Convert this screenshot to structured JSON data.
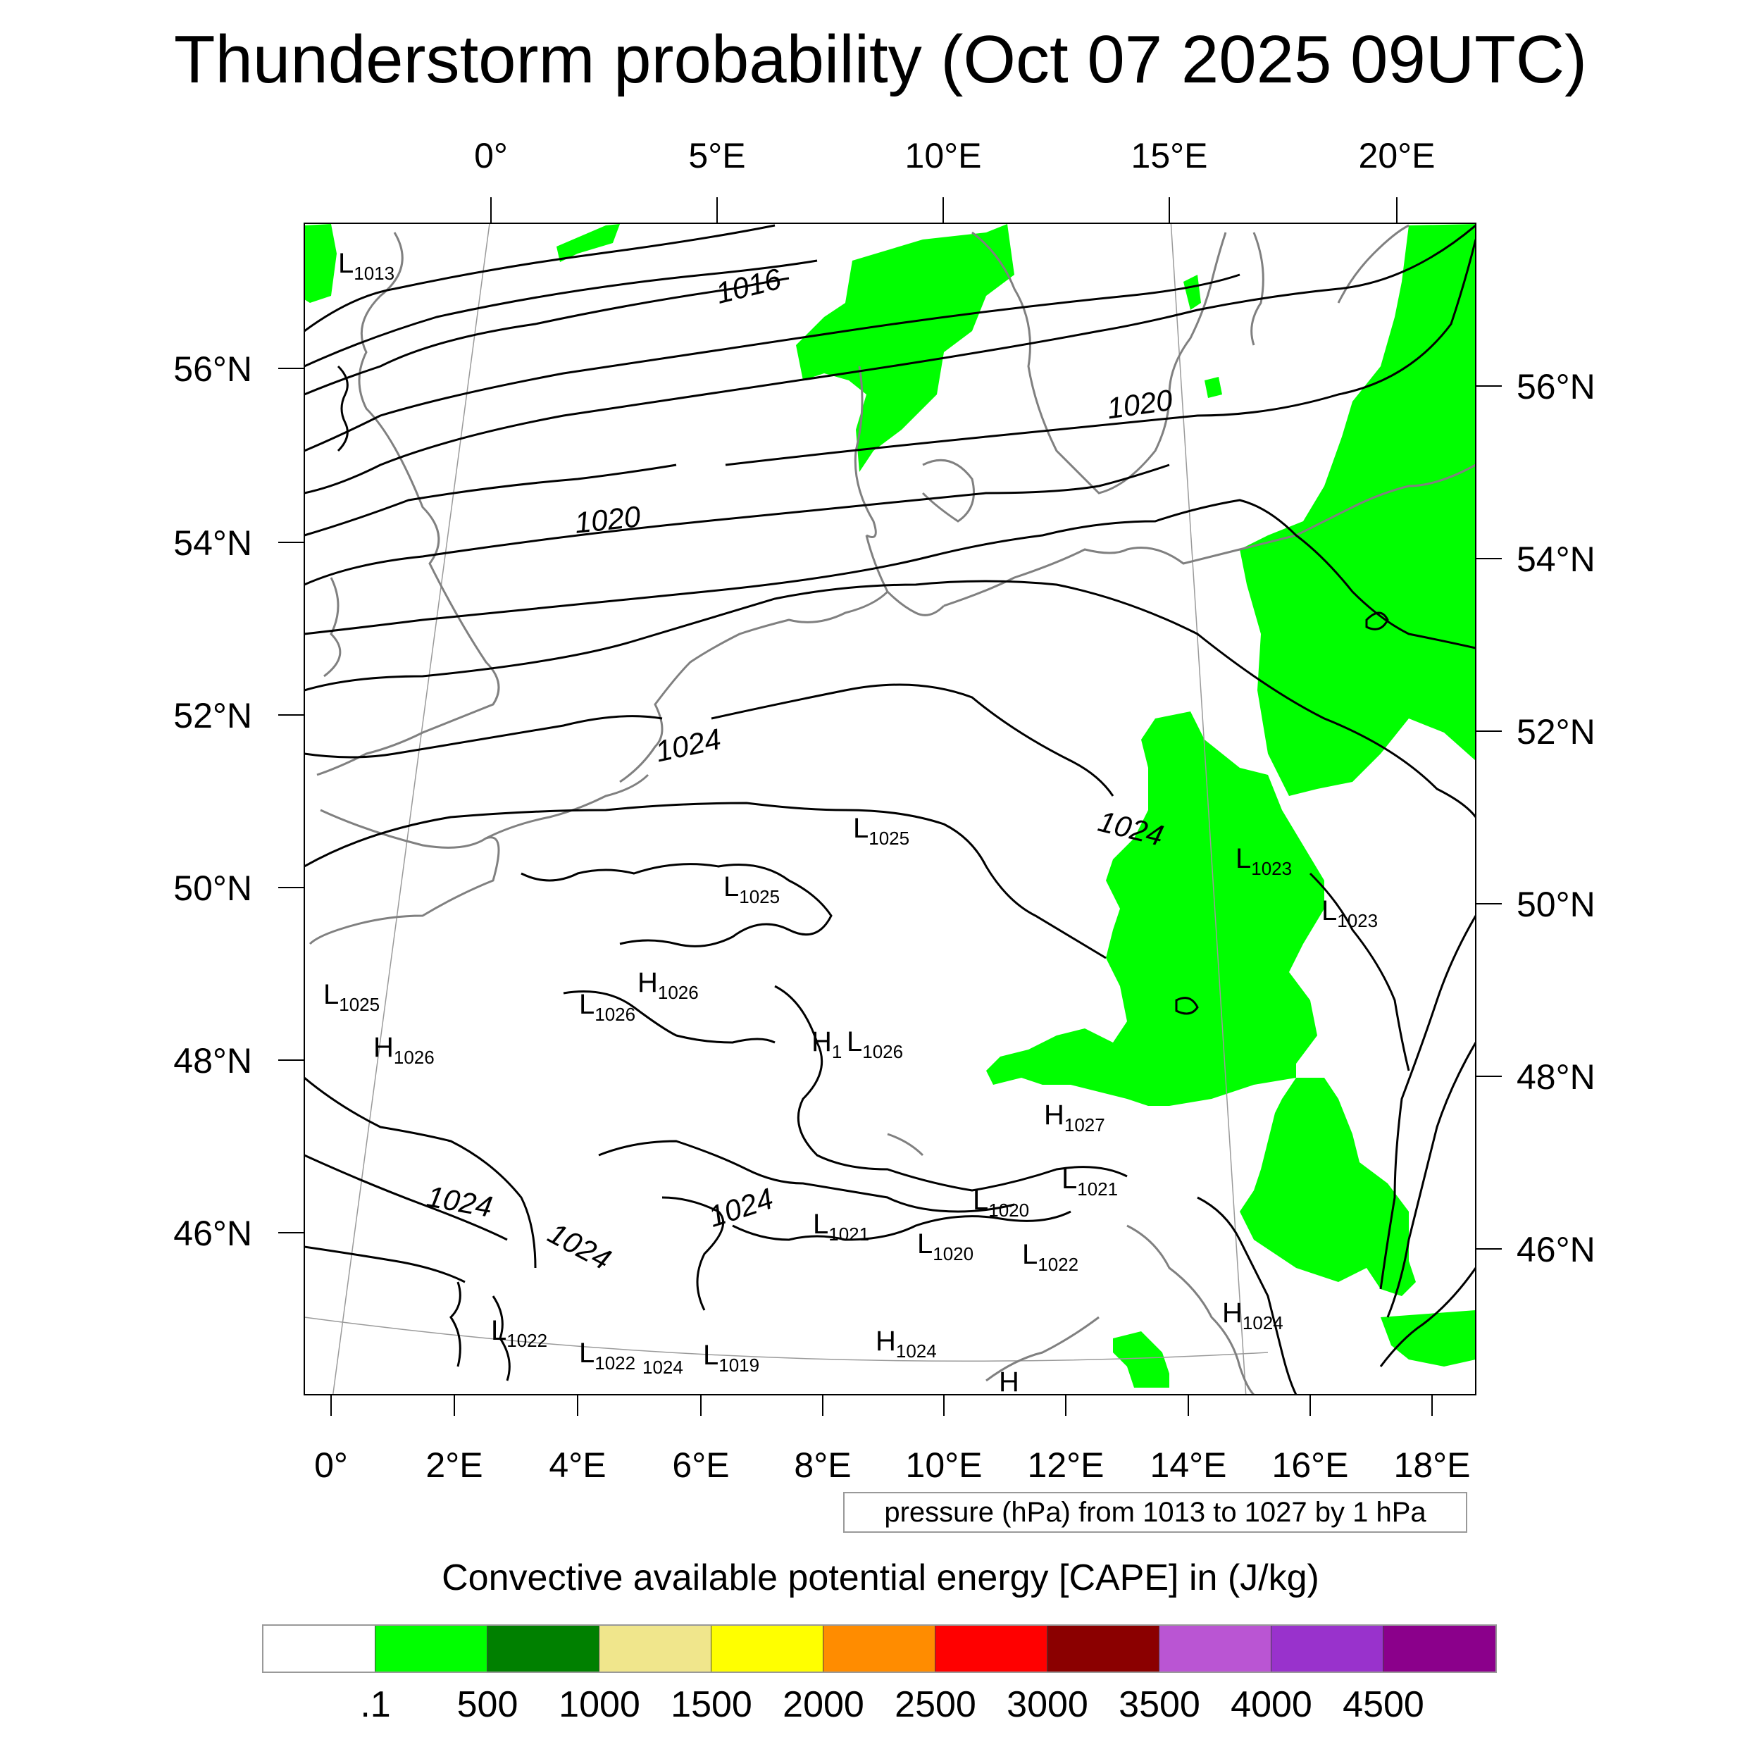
{
  "title": "Thunderstorm probability (Oct 07 2025 09UTC)",
  "axes": {
    "top_lon_labels": [
      "0°",
      "5°E",
      "10°E",
      "15°E",
      "20°E"
    ],
    "bottom_lon_labels": [
      "0°",
      "2°E",
      "4°E",
      "6°E",
      "8°E",
      "10°E",
      "12°E",
      "14°E",
      "16°E",
      "18°E"
    ],
    "left_lat_labels": [
      "56°N",
      "54°N",
      "52°N",
      "50°N",
      "48°N",
      "46°N"
    ],
    "right_lat_labels": [
      "56°N",
      "54°N",
      "52°N",
      "50°N",
      "48°N",
      "46°N"
    ]
  },
  "isobar_labels": [
    "1016",
    "1020",
    "1020",
    "1024",
    "1024",
    "1024",
    "1024",
    "1024"
  ],
  "pressure_centers": [
    {
      "type": "L",
      "value": "1013"
    },
    {
      "type": "L",
      "value": "1025"
    },
    {
      "type": "L",
      "value": "1025"
    },
    {
      "type": "L",
      "value": "1023"
    },
    {
      "type": "L",
      "value": "1023"
    },
    {
      "type": "L",
      "value": "1025"
    },
    {
      "type": "H",
      "value": "1026"
    },
    {
      "type": "L",
      "value": "1026"
    },
    {
      "type": "H",
      "value": "1026"
    },
    {
      "type": "H",
      "value": "1"
    },
    {
      "type": "L",
      "value": "1026"
    },
    {
      "type": "H",
      "value": "1027"
    },
    {
      "type": "L",
      "value": "1021"
    },
    {
      "type": "L",
      "value": "1020"
    },
    {
      "type": "L",
      "value": "1021"
    },
    {
      "type": "L",
      "value": "1020"
    },
    {
      "type": "L",
      "value": "1022"
    },
    {
      "type": "H",
      "value": "1024"
    },
    {
      "type": "H",
      "value": "1024"
    },
    {
      "type": "L",
      "value": "1022"
    },
    {
      "type": "L",
      "value": "1022"
    },
    {
      "type": "L",
      "value": "1019"
    },
    {
      "type": "H",
      "value": ""
    }
  ],
  "small_labels": [
    "1024"
  ],
  "info_text": "pressure (hPa) from 1013 to 1027 by 1 hPa",
  "colorbar": {
    "title": "Convective available potential energy [CAPE] in (J/kg)",
    "colors": [
      "#ffffff",
      "#00ff00",
      "#008000",
      "#f0e68c",
      "#ffff00",
      "#ff8c00",
      "#ff0000",
      "#8b0000",
      "#ba55d3",
      "#9932cc",
      "#8b008b"
    ],
    "labels": [
      ".1",
      "500",
      "1000",
      "1500",
      "2000",
      "2500",
      "3000",
      "3500",
      "4000",
      "4500"
    ]
  },
  "colors": {
    "cape_fill": "#00ff00",
    "coastline": "#808080",
    "isobar": "#000000"
  }
}
